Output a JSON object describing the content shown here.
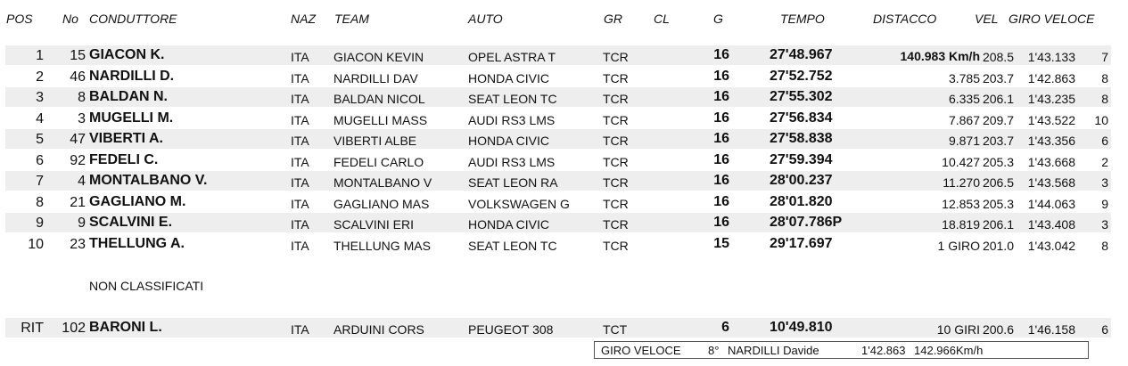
{
  "headers": {
    "pos": "POS",
    "no": "No",
    "driver": "CONDUTTORE",
    "naz": "NAZ",
    "team": "TEAM",
    "auto": "AUTO",
    "gr": "GR",
    "cl": "CL",
    "g": "G",
    "tempo": "TEMPO",
    "distacco": "DISTACCO",
    "vel": "VEL",
    "giro_veloce": "GIRO  VELOCE"
  },
  "rows": [
    {
      "pos": "1",
      "no": "15",
      "driver": "GIACON K.",
      "naz": "ITA",
      "team": "GIACON KEVIN",
      "auto": "OPEL ASTRA T",
      "gr": "TCR",
      "g": "16",
      "tempo": "27'48.967",
      "distacco": "140.983 Km/h",
      "vel": "208.5",
      "giro": "1'43.133",
      "lap": "7"
    },
    {
      "pos": "2",
      "no": "46",
      "driver": "NARDILLI D.",
      "naz": "ITA",
      "team": "NARDILLI DAV",
      "auto": "HONDA CIVIC",
      "gr": "TCR",
      "g": "16",
      "tempo": "27'52.752",
      "distacco": "3.785",
      "vel": "203.7",
      "giro": "1'42.863",
      "lap": "8"
    },
    {
      "pos": "3",
      "no": "8",
      "driver": "BALDAN N.",
      "naz": "ITA",
      "team": "BALDAN NICOL",
      "auto": "SEAT LEON TC",
      "gr": "TCR",
      "g": "16",
      "tempo": "27'55.302",
      "distacco": "6.335",
      "vel": "206.1",
      "giro": "1'43.235",
      "lap": "8"
    },
    {
      "pos": "4",
      "no": "3",
      "driver": "MUGELLI M.",
      "naz": "ITA",
      "team": "MUGELLI MASS",
      "auto": "AUDI RS3 LMS",
      "gr": "TCR",
      "g": "16",
      "tempo": "27'56.834",
      "distacco": "7.867",
      "vel": "209.7",
      "giro": "1'43.522",
      "lap": "10"
    },
    {
      "pos": "5",
      "no": "47",
      "driver": "VIBERTI A.",
      "naz": "ITA",
      "team": "VIBERTI ALBE",
      "auto": "HONDA CIVIC",
      "gr": "TCR",
      "g": "16",
      "tempo": "27'58.838",
      "distacco": "9.871",
      "vel": "203.7",
      "giro": "1'43.356",
      "lap": "6"
    },
    {
      "pos": "6",
      "no": "92",
      "driver": "FEDELI C.",
      "naz": "ITA",
      "team": "FEDELI CARLO",
      "auto": "AUDI RS3 LMS",
      "gr": "TCR",
      "g": "16",
      "tempo": "27'59.394",
      "distacco": "10.427",
      "vel": "205.3",
      "giro": "1'43.668",
      "lap": "2"
    },
    {
      "pos": "7",
      "no": "4",
      "driver": "MONTALBANO V.",
      "naz": "ITA",
      "team": "MONTALBANO V",
      "auto": "SEAT LEON RA",
      "gr": "TCR",
      "g": "16",
      "tempo": "28'00.237",
      "distacco": "11.270",
      "vel": "206.5",
      "giro": "1'43.568",
      "lap": "3"
    },
    {
      "pos": "8",
      "no": "21",
      "driver": "GAGLIANO M.",
      "naz": "ITA",
      "team": "GAGLIANO MAS",
      "auto": "VOLKSWAGEN G",
      "gr": "TCR",
      "g": "16",
      "tempo": "28'01.820",
      "distacco": "12.853",
      "vel": "205.3",
      "giro": "1'44.063",
      "lap": "9"
    },
    {
      "pos": "9",
      "no": "9",
      "driver": "SCALVINI E.",
      "naz": "ITA",
      "team": "SCALVINI ERI",
      "auto": "HONDA CIVIC",
      "gr": "TCR",
      "g": "16",
      "tempo": "28'07.786P",
      "distacco": "18.819",
      "vel": "206.1",
      "giro": "1'43.408",
      "lap": "3"
    },
    {
      "pos": "10",
      "no": "23",
      "driver": "THELLUNG A.",
      "naz": "ITA",
      "team": "THELLUNG MAS",
      "auto": "SEAT LEON TC",
      "gr": "TCR",
      "g": "15",
      "tempo": "29'17.697",
      "distacco": "1 GIRO",
      "vel": "201.0",
      "giro": "1'43.042",
      "lap": "8"
    }
  ],
  "not_classified_label": "NON  CLASSIFICATI",
  "retired": [
    {
      "pos": "RIT",
      "no": "102",
      "driver": "BARONI L.",
      "naz": "ITA",
      "team": "ARDUINI CORS",
      "auto": "PEUGEOT 308",
      "gr": "TCT",
      "g": "6",
      "tempo": "10'49.810",
      "distacco": "10 GIRI",
      "vel": "200.6",
      "giro": "1'46.158",
      "lap": "6"
    }
  ],
  "fastest_lap": {
    "label": "GIRO VELOCE",
    "lap": "8°",
    "driver": "NARDILLI Davide",
    "time": "1'42.863",
    "speed": "142.966Km/h"
  }
}
